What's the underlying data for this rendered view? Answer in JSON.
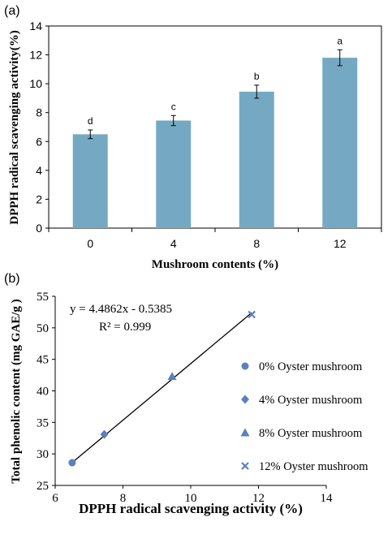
{
  "chart_data": [
    {
      "type": "bar",
      "panel_label": "(a)",
      "categories": [
        "0",
        "4",
        "8",
        "12"
      ],
      "values": [
        6.5,
        7.45,
        9.45,
        11.8
      ],
      "errors": [
        0.3,
        0.35,
        0.45,
        0.55
      ],
      "letters": [
        "d",
        "c",
        "b",
        "a"
      ],
      "xlabel": "Mushroom contents (%)",
      "ylabel": "DPPH radical scavenging activity(%)",
      "ylim": [
        0,
        14
      ],
      "yticks": [
        "0",
        "2",
        "4",
        "6",
        "8",
        "10",
        "12",
        "14"
      ],
      "bar_color": "#75a9c3",
      "grid": false
    },
    {
      "type": "scatter",
      "panel_label": "(b)",
      "series": [
        {
          "name": "0% Oyster mushroom",
          "marker": "circle",
          "x": [
            6.5
          ],
          "y": [
            28.6
          ]
        },
        {
          "name": "4% Oyster mushroom",
          "marker": "diamond",
          "x": [
            7.45
          ],
          "y": [
            33.1
          ]
        },
        {
          "name": "8% Oyster mushroom",
          "marker": "triangle",
          "x": [
            9.45
          ],
          "y": [
            42.3
          ]
        },
        {
          "name": "12% Oyster mushroom",
          "marker": "x",
          "x": [
            11.8
          ],
          "y": [
            52.1
          ]
        }
      ],
      "trendline": {
        "slope": 4.4862,
        "intercept": -0.5385,
        "x_range": [
          6.5,
          11.8
        ]
      },
      "equation": "y = 4.4862x - 0.5385",
      "r2": "R² = 0.999",
      "xlabel": "DPPH radical scavenging activity (%)",
      "ylabel": "Total phenolic content (mg GAE/g )",
      "xlim": [
        6,
        14
      ],
      "ylim": [
        25,
        55
      ],
      "xticks": [
        "6",
        "8",
        "10",
        "12",
        "14"
      ],
      "yticks": [
        "25",
        "30",
        "35",
        "40",
        "45",
        "50",
        "55"
      ],
      "legend_position": "right",
      "marker_color": "#5b7fbf",
      "grid": false
    }
  ]
}
